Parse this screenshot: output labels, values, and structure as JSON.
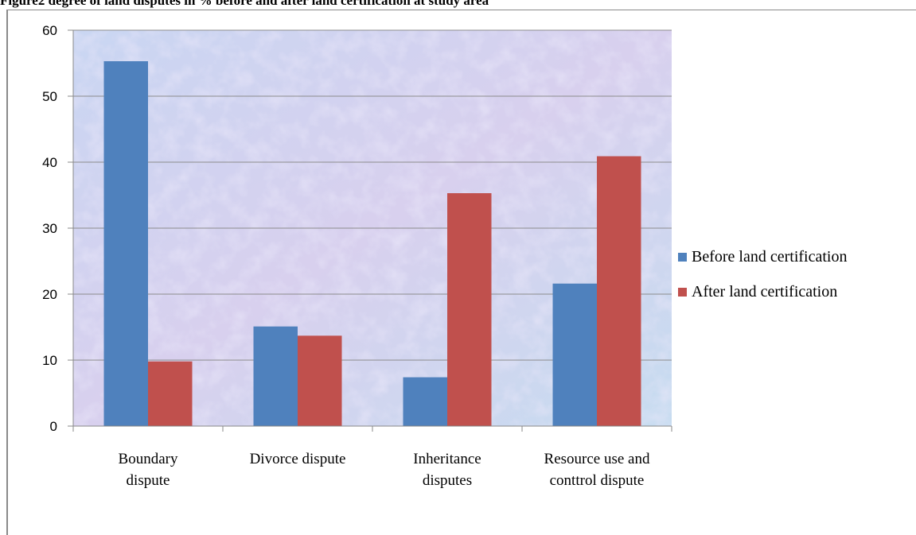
{
  "figure_title": "Figure2 degree of land disputes in % before and after land certification at study area",
  "colors": {
    "before": "#4f81bd",
    "after": "#c0504d",
    "grid": "#8c8c8c"
  },
  "chart_data": {
    "type": "bar",
    "title": "",
    "xlabel": "",
    "ylabel": "",
    "ylim": [
      0,
      60
    ],
    "yticks": [
      0,
      10,
      20,
      30,
      40,
      50,
      60
    ],
    "grid": true,
    "legend_position": "right",
    "categories": [
      [
        "Boundary",
        "dispute"
      ],
      [
        "Divorce dispute"
      ],
      [
        "Inheritance",
        "disputes"
      ],
      [
        "Resource use and",
        "conttrol dispute"
      ]
    ],
    "series": [
      {
        "name": "Before land certification",
        "values": [
          55.3,
          15.1,
          7.4,
          21.6
        ]
      },
      {
        "name": "After land certification",
        "values": [
          9.8,
          13.7,
          35.3,
          40.9
        ]
      }
    ]
  }
}
